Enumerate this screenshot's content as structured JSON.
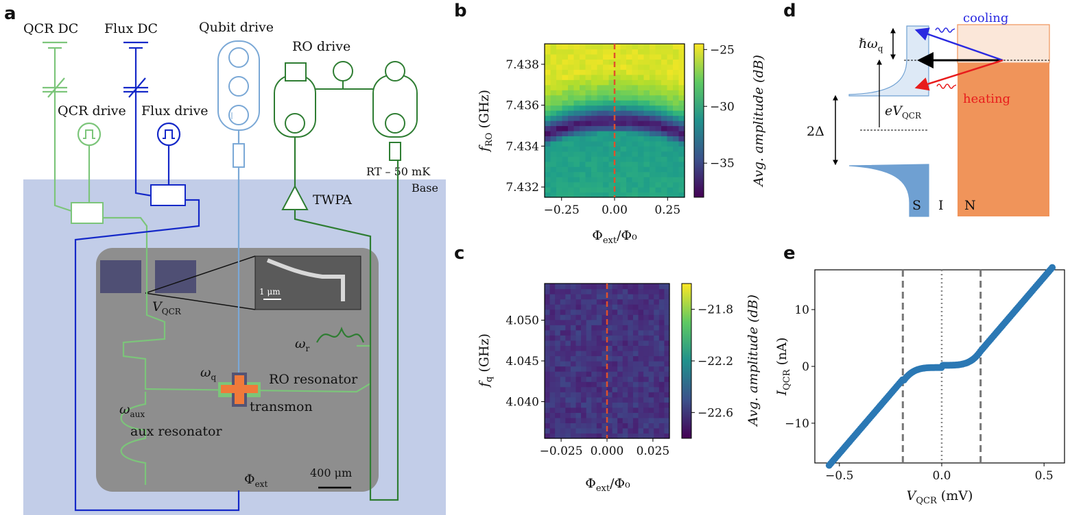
{
  "panels": {
    "a": "a",
    "b": "b",
    "c": "c",
    "d": "d",
    "e": "e"
  },
  "panel_a": {
    "qcr_dc": "QCR DC",
    "flux_dc": "Flux DC",
    "qubit_drive": "Qubit drive",
    "ro_drive": "RO drive",
    "qcr_drive": "QCR drive",
    "flux_drive": "Flux drive",
    "twpa": "TWPA",
    "rt_stage": "RT – 50 mK",
    "base": "Base",
    "v_qcr": "V",
    "v_qcr_sub": "QCR",
    "scale_inset": "1 μm",
    "omega_q": "ω",
    "omega_q_sub": "q",
    "omega_r": "ω",
    "omega_r_sub": "r",
    "ro_resonator": "RO resonator",
    "transmon": "transmon",
    "omega_aux": "ω",
    "omega_aux_sub": "aux",
    "aux_resonator": "aux resonator",
    "phi_ext": "Φ",
    "phi_ext_sub": "ext",
    "scale_chip": "400 μm",
    "colors": {
      "qcr": "#7cc57a",
      "flux": "#1428c8",
      "qubit": "#7aa8d6",
      "ro": "#2e7d32",
      "base": "#c2cde8"
    }
  },
  "chart_data": [
    {
      "panel": "b",
      "type": "heatmap",
      "xlabel": "Φ_ext/Φ_0",
      "ylabel": "f_RO (GHz)",
      "colorbar_label": "Avg. amplitude (dB)",
      "xlim": [
        -0.33,
        0.33
      ],
      "ylim": [
        7.4315,
        7.439
      ],
      "xticks": [
        "−0.25",
        "0.00",
        "0.25"
      ],
      "xtick_values": [
        -0.25,
        0,
        0.25
      ],
      "yticks": [
        "7.432",
        "7.434",
        "7.436",
        "7.438"
      ],
      "ytick_values": [
        7.432,
        7.434,
        7.436,
        7.438
      ],
      "cbar_ticks": [
        "−25",
        "−30",
        "−35"
      ],
      "cbar_tick_values": [
        -25,
        -30,
        -35
      ],
      "cbar_range": [
        -38,
        -24.5
      ],
      "resonance_center": 7.4352,
      "resonance_curvature": 0.006,
      "marker_x": 0.0
    },
    {
      "panel": "c",
      "type": "heatmap",
      "xlabel": "Φ_ext/Φ_0",
      "ylabel": "f_q (GHz)",
      "colorbar_label": "Avg. amplitude (dB)",
      "xlim": [
        -0.034,
        0.034
      ],
      "ylim": [
        4.0355,
        4.0545
      ],
      "xticks": [
        "−0.025",
        "0.000",
        "0.025"
      ],
      "xtick_values": [
        -0.025,
        0,
        0.025
      ],
      "yticks": [
        "4.040",
        "4.045",
        "4.050"
      ],
      "ytick_values": [
        4.04,
        4.045,
        4.05
      ],
      "cbar_ticks": [
        "−21.8",
        "−22.2",
        "−22.6"
      ],
      "cbar_tick_values": [
        -21.8,
        -22.2,
        -22.6
      ],
      "cbar_range": [
        -22.8,
        -21.6
      ],
      "peak_freq": 4.0475,
      "peak_curvature": 10500,
      "marker_x": 0.0
    },
    {
      "panel": "e",
      "type": "scatter",
      "xlabel": "V_QCR (mV)",
      "ylabel": "I_QCR (nA)",
      "xlim": [
        -0.62,
        0.6
      ],
      "ylim": [
        -17,
        17
      ],
      "xticks": [
        "−0.5",
        "0.0",
        "0.5"
      ],
      "xtick_values": [
        -0.5,
        0,
        0.5
      ],
      "yticks": [
        "−10",
        "0",
        "10"
      ],
      "ytick_values": [
        -10,
        0,
        10
      ],
      "vlines_dashed": [
        -0.19,
        0.19
      ],
      "vline_dotted": 0.0,
      "gap_voltage": 0.19,
      "conductance_nA_per_mV": 42,
      "plateau_current": 0.2,
      "x_start": -0.55,
      "x_end": 0.54,
      "color": "#2b78b4"
    }
  ],
  "panel_d": {
    "cooling": "cooling",
    "heating": "heating",
    "hbar_omega": "ℏω",
    "hbar_omega_sub": "q",
    "ev": "eV",
    "ev_sub": "QCR",
    "two_delta": "2Δ",
    "s": "S",
    "i": "I",
    "n": "N",
    "colors": {
      "s": "#6fa0d2",
      "n": "#f0945a",
      "cooling": "#2a2ae0",
      "heating": "#e81c1c"
    }
  }
}
